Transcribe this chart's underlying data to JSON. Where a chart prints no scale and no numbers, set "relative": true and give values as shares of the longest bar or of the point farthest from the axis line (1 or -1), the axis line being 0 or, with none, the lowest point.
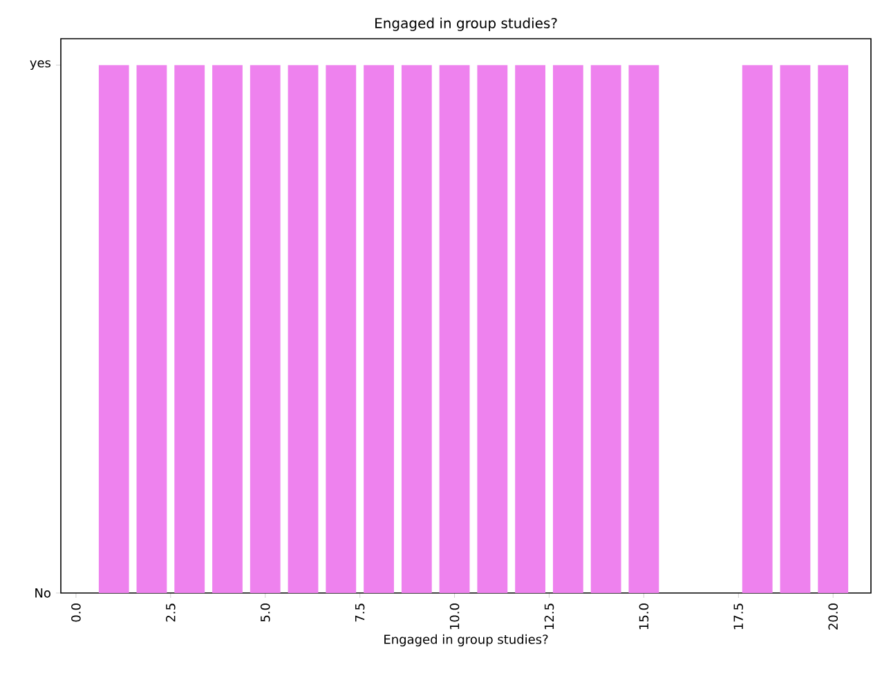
{
  "chart_data": {
    "type": "bar",
    "title": "Engaged in group studies?",
    "xlabel": "Engaged in group studies?",
    "x": [
      1,
      2,
      3,
      4,
      5,
      6,
      7,
      8,
      9,
      10,
      11,
      12,
      13,
      14,
      15,
      16,
      17,
      18,
      19,
      20
    ],
    "values": [
      1,
      1,
      1,
      1,
      1,
      1,
      1,
      1,
      1,
      1,
      1,
      1,
      1,
      1,
      1,
      0,
      0,
      1,
      1,
      1
    ],
    "relative": true,
    "color": "#ee82ee",
    "xlim": [
      -0.4,
      21.0
    ],
    "xticks": [
      {
        "value": 0,
        "label": "0.0"
      },
      {
        "value": 2.5,
        "label": "2.5"
      },
      {
        "value": 5,
        "label": "5.0"
      },
      {
        "value": 7.5,
        "label": "7.5"
      },
      {
        "value": 10,
        "label": "10.0"
      },
      {
        "value": 12.5,
        "label": "12.5"
      },
      {
        "value": 15,
        "label": "15.0"
      },
      {
        "value": 17.5,
        "label": "17.5"
      },
      {
        "value": 20,
        "label": "20.0"
      }
    ],
    "annotations": [
      "No",
      "yes"
    ],
    "grid": false
  }
}
